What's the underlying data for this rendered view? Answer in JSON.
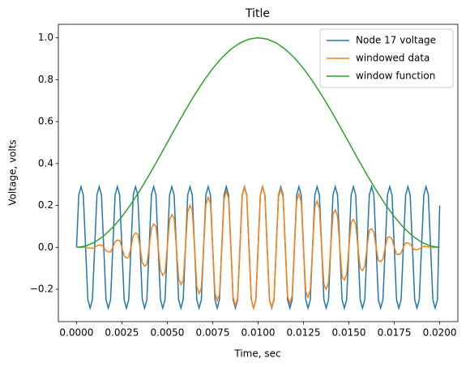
{
  "chart_data": {
    "type": "line",
    "title": "Title",
    "xlabel": "Time, sec",
    "ylabel": "Voltage, volts",
    "legend": "upper right",
    "x": [
      0,
      0.000125,
      0.00025,
      0.000375,
      0.0005,
      0.000625,
      0.00075,
      0.000875,
      0.001,
      0.001125,
      0.00125,
      0.001375,
      0.0015,
      0.001625,
      0.00175,
      0.001875,
      0.002,
      0.002125,
      0.00225,
      0.002375,
      0.0025,
      0.002625,
      0.00275,
      0.002875,
      0.003,
      0.003125,
      0.00325,
      0.003375,
      0.0035,
      0.003625,
      0.00375,
      0.003875,
      0.004,
      0.004125,
      0.00425,
      0.004375,
      0.0045,
      0.004625,
      0.00475,
      0.004875,
      0.005,
      0.005125,
      0.00525,
      0.005375,
      0.0055,
      0.005625,
      0.00575,
      0.005875,
      0.006,
      0.006125,
      0.00625,
      0.006375,
      0.0065,
      0.006625,
      0.00675,
      0.006875,
      0.007,
      0.007125,
      0.00725,
      0.007375,
      0.0075,
      0.007625,
      0.00775,
      0.007875,
      0.008,
      0.008125,
      0.00825,
      0.008375,
      0.0085,
      0.008625,
      0.00875,
      0.008875,
      0.009,
      0.009125,
      0.00925,
      0.009375,
      0.0095,
      0.009625,
      0.00975,
      0.009875,
      0.01,
      0.010125,
      0.01025,
      0.010375,
      0.0105,
      0.010625,
      0.01075,
      0.010875,
      0.011,
      0.011125,
      0.01125,
      0.011375,
      0.0115,
      0.011625,
      0.01175,
      0.011875,
      0.012,
      0.012125,
      0.01225,
      0.012375,
      0.0125,
      0.012625,
      0.01275,
      0.012875,
      0.013,
      0.013125,
      0.01325,
      0.013375,
      0.0135,
      0.013625,
      0.01375,
      0.013875,
      0.014,
      0.014125,
      0.01425,
      0.014375,
      0.0145,
      0.014625,
      0.01475,
      0.014875,
      0.015,
      0.015125,
      0.01525,
      0.015375,
      0.0155,
      0.015625,
      0.01575,
      0.015875,
      0.016,
      0.016125,
      0.01625,
      0.016375,
      0.0165,
      0.016625,
      0.01675,
      0.016875,
      0.017,
      0.017125,
      0.01725,
      0.017375,
      0.0175,
      0.017625,
      0.01775,
      0.017875,
      0.018,
      0.018125,
      0.01825,
      0.018375,
      0.0185,
      0.018625,
      0.01875,
      0.018875,
      0.019,
      0.019125,
      0.01925,
      0.019375,
      0.0195,
      0.019625,
      0.01975,
      0.019875,
      0.02
    ],
    "series": [
      {
        "name": "Node 17 voltage",
        "color": "#1f77b4",
        "values": [
          0,
          0.25,
          0.29,
          0.25,
          0,
          -0.25,
          -0.29,
          -0.25,
          0,
          0.25,
          0.29,
          0.25,
          0,
          -0.25,
          -0.29,
          -0.25,
          0,
          0.25,
          0.29,
          0.25,
          0,
          -0.25,
          -0.29,
          -0.25,
          0,
          0.25,
          0.29,
          0.25,
          0,
          -0.25,
          -0.29,
          -0.25,
          0,
          0.25,
          0.29,
          0.25,
          0,
          -0.25,
          -0.29,
          -0.25,
          0,
          0.25,
          0.29,
          0.25,
          0,
          -0.25,
          -0.29,
          -0.25,
          0,
          0.25,
          0.29,
          0.25,
          0,
          -0.25,
          -0.29,
          -0.25,
          0,
          0.25,
          0.29,
          0.25,
          0,
          -0.25,
          -0.29,
          -0.25,
          0,
          0.25,
          0.29,
          0.25,
          0,
          -0.25,
          -0.29,
          -0.25,
          0,
          0.25,
          0.29,
          0.25,
          0,
          -0.25,
          -0.29,
          -0.25,
          0,
          0.25,
          0.29,
          0.25,
          0,
          -0.25,
          -0.29,
          -0.25,
          0,
          0.25,
          0.29,
          0.25,
          0,
          -0.25,
          -0.29,
          -0.25,
          0,
          0.25,
          0.29,
          0.25,
          0,
          -0.25,
          -0.29,
          -0.25,
          0,
          0.25,
          0.29,
          0.25,
          0,
          -0.25,
          -0.29,
          -0.25,
          0,
          0.25,
          0.29,
          0.25,
          0,
          -0.25,
          -0.29,
          -0.25,
          0,
          0.25,
          0.29,
          0.25,
          0,
          -0.25,
          -0.29,
          -0.25,
          0,
          0.25,
          0.29,
          0.25,
          0,
          -0.25,
          -0.29,
          -0.25,
          0,
          0.25,
          0.29,
          0.25,
          0,
          -0.25,
          -0.29,
          -0.25,
          0,
          0.25,
          0.29,
          0.25,
          0,
          -0.25,
          -0.29,
          -0.25,
          0,
          0.25,
          0.29,
          0.25,
          0,
          -0.25,
          -0.29,
          -0.25,
          0.2
        ]
      },
      {
        "name": "windowed data",
        "color": "#ff7f0e",
        "values": [
          0,
          0.0001,
          0.0004,
          0.0009,
          0,
          -0.0024,
          -0.004,
          -0.0047,
          0,
          0.0077,
          0.011,
          0.0115,
          0,
          -0.0159,
          -0.0214,
          -0.0211,
          0,
          0.0268,
          0.0347,
          0.0332,
          0,
          -0.0402,
          -0.0508,
          -0.0476,
          0,
          0.0556,
          0.0693,
          0.0639,
          0,
          -0.0727,
          -0.0895,
          -0.0817,
          0,
          0.0911,
          0.1112,
          0.1006,
          0,
          -0.1103,
          -0.1336,
          -0.1201,
          0,
          0.1299,
          0.1564,
          0.1397,
          0,
          -0.1494,
          -0.1788,
          -0.1589,
          0,
          0.1683,
          0.2005,
          0.1773,
          0,
          -0.1861,
          -0.2207,
          -0.1945,
          0,
          0.2024,
          0.2392,
          0.2099,
          0,
          -0.2168,
          -0.2553,
          -0.2232,
          0,
          0.2289,
          0.2686,
          0.2341,
          0,
          -0.2385,
          -0.279,
          -0.2423,
          0,
          0.2453,
          0.286,
          0.2476,
          0,
          -0.2491,
          -0.2896,
          -0.2499,
          0,
          0.2499,
          0.2896,
          0.2491,
          0,
          -0.2476,
          -0.286,
          -0.2453,
          0,
          0.2423,
          0.279,
          0.2385,
          0,
          -0.2341,
          -0.2686,
          -0.2289,
          0,
          0.2232,
          0.2553,
          0.2168,
          0,
          -0.2099,
          -0.2392,
          -0.2024,
          0,
          0.1945,
          0.2207,
          0.1861,
          0,
          -0.1773,
          -0.2005,
          -0.1683,
          0,
          0.1589,
          0.1788,
          0.1494,
          0,
          -0.1397,
          -0.1564,
          -0.1299,
          0,
          0.1201,
          0.1336,
          0.1103,
          0,
          -0.1006,
          -0.1112,
          -0.0911,
          0,
          0.0817,
          0.0895,
          0.0727,
          0,
          -0.0639,
          -0.0693,
          -0.0556,
          0,
          0.0476,
          0.0508,
          0.0402,
          0,
          -0.0332,
          -0.0347,
          -0.0268,
          0,
          0.0211,
          0.0214,
          0.0159,
          0,
          -0.0115,
          -0.011,
          -0.0077,
          0,
          0.0047,
          0.004,
          0.0024,
          0,
          -0.0009,
          -0.0004,
          -0.0001,
          0
        ]
      },
      {
        "name": "window function",
        "color": "#2ca02c",
        "x": [
          0,
          0.0005,
          0.001,
          0.0015,
          0.002,
          0.0025,
          0.003,
          0.0035,
          0.004,
          0.0045,
          0.005,
          0.0055,
          0.006,
          0.0065,
          0.007,
          0.0075,
          0.008,
          0.0085,
          0.009,
          0.0095,
          0.01,
          0.0105,
          0.011,
          0.0115,
          0.012,
          0.0125,
          0.013,
          0.0135,
          0.014,
          0.0145,
          0.015,
          0.0155,
          0.016,
          0.0165,
          0.017,
          0.0175,
          0.018,
          0.0185,
          0.019,
          0.0195,
          0.02
        ],
        "values": [
          0,
          0.0062,
          0.0245,
          0.0545,
          0.0955,
          0.1464,
          0.2061,
          0.273,
          0.3455,
          0.4218,
          0.5,
          0.5782,
          0.6545,
          0.727,
          0.7939,
          0.8536,
          0.9045,
          0.9455,
          0.9755,
          0.9938,
          1,
          0.9938,
          0.9755,
          0.9455,
          0.9045,
          0.8536,
          0.7939,
          0.727,
          0.6545,
          0.5782,
          0.5,
          0.4218,
          0.3455,
          0.273,
          0.2061,
          0.1464,
          0.0955,
          0.0545,
          0.0245,
          0.0062,
          0
        ]
      }
    ],
    "xlim": [
      -0.001,
      0.021
    ],
    "xticks": [
      {
        "value": 0,
        "label": "0.0000"
      },
      {
        "value": 0.0025,
        "label": "0.0025"
      },
      {
        "value": 0.005,
        "label": "0.0050"
      },
      {
        "value": 0.0075,
        "label": "0.0075"
      },
      {
        "value": 0.01,
        "label": "0.0100"
      },
      {
        "value": 0.0125,
        "label": "0.0125"
      },
      {
        "value": 0.015,
        "label": "0.0150"
      },
      {
        "value": 0.0175,
        "label": "0.0175"
      },
      {
        "value": 0.02,
        "label": "0.0200"
      }
    ],
    "ylim": [
      -0.3545,
      1.0645
    ],
    "yticks": [
      {
        "value": -0.2,
        "label": "−0.2"
      },
      {
        "value": 0,
        "label": "0.0"
      },
      {
        "value": 0.2,
        "label": "0.2"
      },
      {
        "value": 0.4,
        "label": "0.4"
      },
      {
        "value": 0.6,
        "label": "0.6"
      },
      {
        "value": 0.8,
        "label": "0.8"
      },
      {
        "value": 1,
        "label": "1.0"
      }
    ]
  }
}
